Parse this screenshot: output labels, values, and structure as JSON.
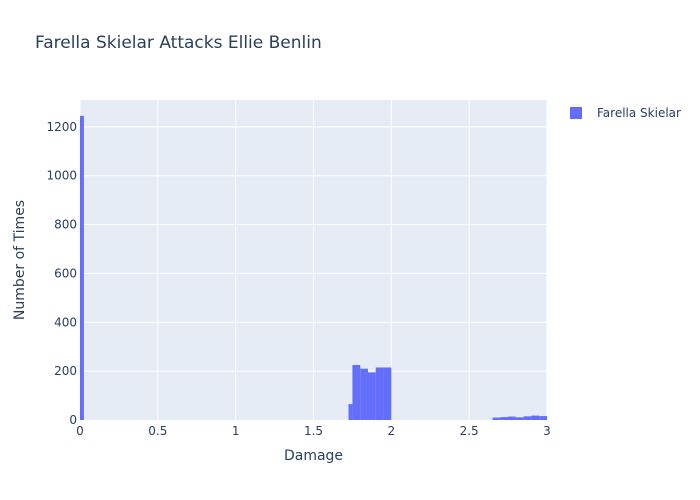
{
  "chart_data": {
    "type": "bar",
    "title": "Farella Skielar Attacks Ellie Benlin",
    "xlabel": "Damage",
    "ylabel": "Number of Times",
    "xlim": [
      0,
      3
    ],
    "ylim": [
      0,
      1310
    ],
    "grid": true,
    "legend_position": "top-right",
    "x_ticks": [
      0,
      0.5,
      1,
      1.5,
      2,
      2.5,
      3
    ],
    "x_tick_labels": [
      "0",
      "0.5",
      "1",
      "1.5",
      "2",
      "2.5",
      "3"
    ],
    "y_ticks": [
      0,
      200,
      400,
      600,
      800,
      1000,
      1200
    ],
    "y_tick_labels": [
      "0",
      "200",
      "400",
      "600",
      "800",
      "1000",
      "1200"
    ],
    "series": [
      {
        "name": "Farella Skielar",
        "color": "#636efa",
        "bins": [
          {
            "x0": 0.0,
            "x1": 0.025,
            "count": 1245
          },
          {
            "x0": 1.725,
            "x1": 1.75,
            "count": 65
          },
          {
            "x0": 1.75,
            "x1": 1.8,
            "count": 225
          },
          {
            "x0": 1.8,
            "x1": 1.85,
            "count": 210
          },
          {
            "x0": 1.85,
            "x1": 1.9,
            "count": 195
          },
          {
            "x0": 1.9,
            "x1": 1.95,
            "count": 215
          },
          {
            "x0": 1.95,
            "x1": 2.0,
            "count": 215
          },
          {
            "x0": 2.65,
            "x1": 2.7,
            "count": 10
          },
          {
            "x0": 2.7,
            "x1": 2.75,
            "count": 12
          },
          {
            "x0": 2.75,
            "x1": 2.8,
            "count": 14
          },
          {
            "x0": 2.8,
            "x1": 2.85,
            "count": 11
          },
          {
            "x0": 2.85,
            "x1": 2.9,
            "count": 15
          },
          {
            "x0": 2.9,
            "x1": 2.95,
            "count": 18
          },
          {
            "x0": 2.95,
            "x1": 3.0,
            "count": 16
          }
        ]
      }
    ],
    "colors": {
      "plot_bg": "#e5ecf6",
      "grid": "#ffffff",
      "text": "#2a3f5f"
    }
  }
}
